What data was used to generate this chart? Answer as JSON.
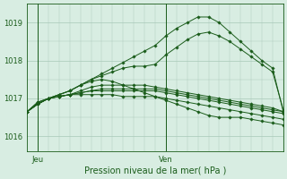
{
  "bg_color": "#d8ede2",
  "grid_color": "#a8c8b8",
  "line_color": "#1a5c1a",
  "title": "Pression niveau de la mer( hPa )",
  "ylim": [
    1015.6,
    1019.5
  ],
  "yticks": [
    1016,
    1017,
    1018,
    1019
  ],
  "xlim": [
    0,
    48
  ],
  "jeu_x": 2,
  "ven_x": 26,
  "series": [
    {
      "x": [
        0,
        2,
        4,
        6,
        8,
        10,
        12,
        14,
        16,
        18,
        20,
        22,
        24,
        26,
        28,
        30,
        32,
        34,
        36,
        38,
        40,
        42,
        44,
        46,
        48
      ],
      "y": [
        1016.65,
        1016.85,
        1017.0,
        1017.05,
        1017.1,
        1017.1,
        1017.1,
        1017.1,
        1017.1,
        1017.05,
        1017.05,
        1017.05,
        1017.05,
        1017.0,
        1016.95,
        1016.9,
        1016.85,
        1016.8,
        1016.75,
        1016.7,
        1016.65,
        1016.6,
        1016.55,
        1016.5,
        1016.45
      ]
    },
    {
      "x": [
        0,
        2,
        4,
        6,
        8,
        10,
        12,
        14,
        16,
        18,
        20,
        22,
        24,
        26,
        28,
        30,
        32,
        34,
        36,
        38,
        40,
        42,
        44,
        46,
        48
      ],
      "y": [
        1016.65,
        1016.85,
        1017.0,
        1017.05,
        1017.1,
        1017.15,
        1017.2,
        1017.2,
        1017.2,
        1017.2,
        1017.2,
        1017.2,
        1017.2,
        1017.15,
        1017.1,
        1017.05,
        1017.0,
        1016.95,
        1016.9,
        1016.85,
        1016.8,
        1016.75,
        1016.7,
        1016.65,
        1016.6
      ]
    },
    {
      "x": [
        0,
        2,
        4,
        6,
        8,
        10,
        12,
        14,
        16,
        18,
        20,
        22,
        24,
        26,
        28,
        30,
        32,
        34,
        36,
        38,
        40,
        42,
        44,
        46,
        48
      ],
      "y": [
        1016.65,
        1016.85,
        1017.0,
        1017.05,
        1017.1,
        1017.15,
        1017.2,
        1017.25,
        1017.25,
        1017.25,
        1017.25,
        1017.25,
        1017.25,
        1017.2,
        1017.15,
        1017.1,
        1017.05,
        1017.0,
        1016.95,
        1016.9,
        1016.85,
        1016.8,
        1016.75,
        1016.7,
        1016.65
      ]
    },
    {
      "x": [
        0,
        2,
        4,
        6,
        8,
        10,
        12,
        14,
        16,
        18,
        20,
        22,
        24,
        26,
        28,
        30,
        32,
        34,
        36,
        38,
        40,
        42,
        44,
        46,
        48
      ],
      "y": [
        1016.65,
        1016.85,
        1017.0,
        1017.05,
        1017.1,
        1017.2,
        1017.3,
        1017.35,
        1017.35,
        1017.35,
        1017.35,
        1017.35,
        1017.3,
        1017.25,
        1017.2,
        1017.15,
        1017.1,
        1017.05,
        1017.0,
        1016.95,
        1016.9,
        1016.85,
        1016.8,
        1016.75,
        1016.65
      ]
    },
    {
      "x": [
        0,
        2,
        4,
        6,
        8,
        10,
        12,
        14,
        16,
        18,
        20,
        22,
        24,
        26,
        28,
        30,
        32,
        34,
        36,
        38,
        40,
        42,
        44,
        46,
        48
      ],
      "y": [
        1016.65,
        1016.85,
        1017.0,
        1017.1,
        1017.2,
        1017.35,
        1017.45,
        1017.5,
        1017.45,
        1017.35,
        1017.25,
        1017.15,
        1017.05,
        1016.95,
        1016.85,
        1016.75,
        1016.65,
        1016.55,
        1016.5,
        1016.5,
        1016.5,
        1016.45,
        1016.4,
        1016.35,
        1016.3
      ]
    },
    {
      "x": [
        0,
        2,
        4,
        6,
        8,
        10,
        12,
        14,
        16,
        18,
        20,
        22,
        24,
        26,
        28,
        30,
        32,
        34,
        36,
        38,
        40,
        42,
        44,
        46,
        48
      ],
      "y": [
        1016.65,
        1016.9,
        1017.0,
        1017.1,
        1017.2,
        1017.35,
        1017.5,
        1017.6,
        1017.7,
        1017.8,
        1017.85,
        1017.85,
        1017.9,
        1018.15,
        1018.35,
        1018.55,
        1018.7,
        1018.75,
        1018.65,
        1018.5,
        1018.3,
        1018.1,
        1017.9,
        1017.7,
        1016.7
      ]
    },
    {
      "x": [
        0,
        2,
        4,
        6,
        8,
        10,
        12,
        14,
        16,
        18,
        20,
        22,
        24,
        26,
        28,
        30,
        32,
        34,
        36,
        38,
        40,
        42,
        44,
        46,
        48
      ],
      "y": [
        1016.65,
        1016.9,
        1017.0,
        1017.1,
        1017.2,
        1017.35,
        1017.5,
        1017.65,
        1017.8,
        1017.95,
        1018.1,
        1018.25,
        1018.4,
        1018.65,
        1018.85,
        1019.0,
        1019.15,
        1019.15,
        1019.0,
        1018.75,
        1018.5,
        1018.25,
        1018.0,
        1017.8,
        1016.65
      ]
    }
  ],
  "marker_indices": [
    0,
    2,
    4,
    6,
    8,
    10,
    12,
    14,
    16,
    18,
    20,
    22,
    24,
    26,
    28,
    30,
    32,
    34,
    36,
    38,
    40,
    42,
    44,
    46,
    48
  ]
}
